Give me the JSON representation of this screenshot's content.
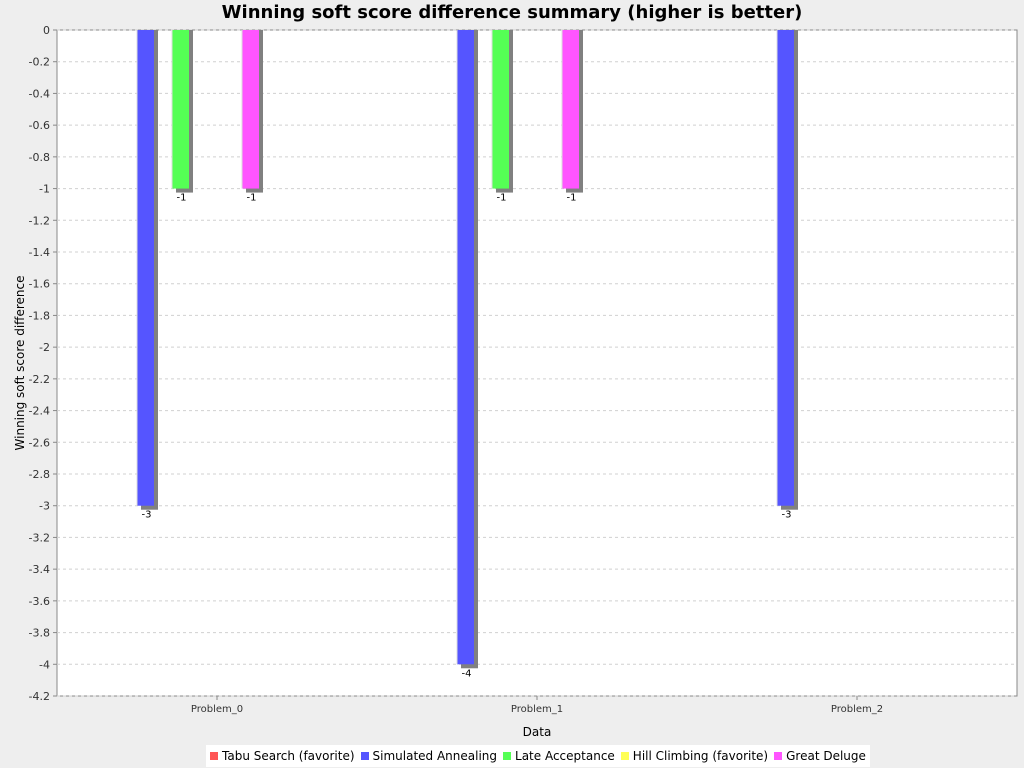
{
  "chart_data": {
    "type": "bar",
    "title": "Winning soft score difference summary (higher is better)",
    "xlabel": "Data",
    "ylabel": "Winning soft score difference",
    "categories": [
      "Problem_0",
      "Problem_1",
      "Problem_2"
    ],
    "ylim": [
      -4.2,
      0
    ],
    "yticks": [
      "0",
      "-0.2",
      "-0.4",
      "-0.6",
      "-0.8",
      "-1",
      "-1.2",
      "-1.4",
      "-1.6",
      "-1.8",
      "-2",
      "-2.2",
      "-2.4",
      "-2.6",
      "-2.8",
      "-3",
      "-3.2",
      "-3.4",
      "-3.6",
      "-3.8",
      "-4",
      "-4.2"
    ],
    "grid": true,
    "legend_position": "bottom",
    "series": [
      {
        "name": "Tabu Search (favorite)",
        "color": "#ff5555",
        "values": [
          0,
          0,
          0
        ]
      },
      {
        "name": "Simulated Annealing",
        "color": "#5555ff",
        "values": [
          -3,
          -4,
          -3
        ]
      },
      {
        "name": "Late Acceptance",
        "color": "#55ff55",
        "values": [
          -1,
          -1,
          0
        ]
      },
      {
        "name": "Hill Climbing (favorite)",
        "color": "#ffff55",
        "values": [
          0,
          0,
          0
        ]
      },
      {
        "name": "Great Deluge",
        "color": "#ff55ff",
        "values": [
          -1,
          -1,
          0
        ]
      }
    ],
    "data_labels": [
      [
        "",
        "-3",
        "-1",
        "",
        "-1"
      ],
      [
        "",
        "-4",
        "-1",
        "",
        "-1"
      ],
      [
        "",
        "-3",
        "",
        "",
        ""
      ]
    ]
  }
}
